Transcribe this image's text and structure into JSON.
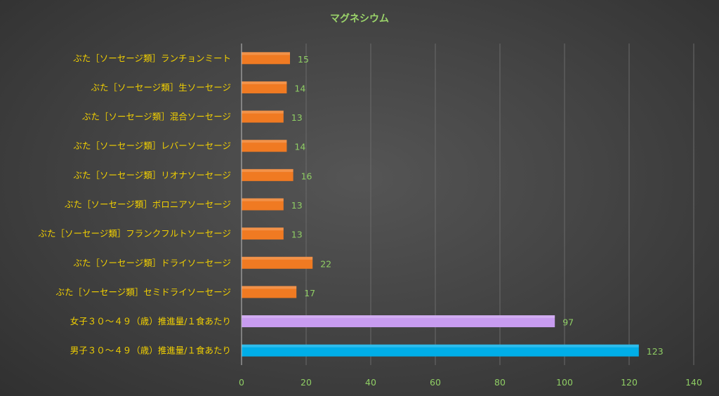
{
  "chart_data": {
    "type": "bar",
    "orientation": "horizontal",
    "title": "マグネシウム",
    "xlabel": "",
    "ylabel": "",
    "xlim": [
      0,
      140
    ],
    "ticks": [
      "0",
      "20",
      "40",
      "60",
      "80",
      "100",
      "120",
      "140"
    ],
    "grid": true,
    "legend": "none",
    "categories": [
      "ぶた［ソーセージ類］ランチョンミート",
      "ぶた［ソーセージ類］生ソーセージ",
      "ぶた［ソーセージ類］混合ソーセージ",
      "ぶた［ソーセージ類］レバーソーセージ",
      "ぶた［ソーセージ類］リオナソーセージ",
      "ぶた［ソーセージ類］ボロニアソーセージ",
      "ぶた［ソーセージ類］フランクフルトソーセージ",
      "ぶた［ソーセージ類］ドライソーセージ",
      "ぶた［ソーセージ類］セミドライソーセージ",
      "女子３０～４９（歳）推進量/１食あたり",
      "男子３０～４９（歳）推進量/１食あたり"
    ],
    "values": [
      15,
      14,
      13,
      14,
      16,
      13,
      13,
      22,
      17,
      97,
      123
    ],
    "value_labels": [
      "15",
      "14",
      "13",
      "14",
      "16",
      "13",
      "13",
      "22",
      "17",
      "97",
      "123"
    ],
    "bar_colors": [
      "#f07a22",
      "#f07a22",
      "#f07a22",
      "#f07a22",
      "#f07a22",
      "#f07a22",
      "#f07a22",
      "#f07a22",
      "#f07a22",
      "#c89cf0",
      "#00aee8"
    ]
  }
}
